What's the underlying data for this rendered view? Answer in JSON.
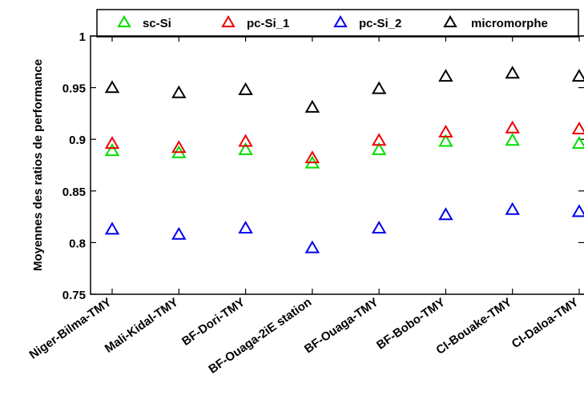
{
  "chart_data": {
    "type": "scatter",
    "title": "",
    "xlabel": "",
    "ylabel": "Moyennes des ratios de performance",
    "categories": [
      "Niger-Bilma-TMY",
      "Mali-Kidal-TMY",
      "BF-Dori-TMY",
      "BF-Ouaga-2iE station",
      "BF-Ouaga-TMY",
      "BF-Bobo-TMY",
      "CI-Bouake-TMY",
      "CI-Daloa-TMY"
    ],
    "ylim": [
      0.75,
      1
    ],
    "yticks": [
      "0.75",
      "0.8",
      "0.85",
      "0.9",
      "0.95",
      "1"
    ],
    "grid": false,
    "legend_position": "top",
    "marker": "triangle",
    "series": [
      {
        "name": "sc-Si",
        "color": "#00dd00",
        "values": [
          0.888,
          0.886,
          0.889,
          0.876,
          0.889,
          0.897,
          0.898,
          0.895
        ]
      },
      {
        "name": "pc-Si_1",
        "color": "#ee0000",
        "values": [
          0.895,
          0.891,
          0.897,
          0.881,
          0.898,
          0.906,
          0.91,
          0.909
        ]
      },
      {
        "name": "pc-Si_2",
        "color": "#0000ee",
        "values": [
          0.812,
          0.807,
          0.813,
          0.794,
          0.813,
          0.826,
          0.831,
          0.829
        ]
      },
      {
        "name": "micromorphe",
        "color": "#000000",
        "values": [
          0.949,
          0.944,
          0.947,
          0.93,
          0.948,
          0.96,
          0.963,
          0.96
        ]
      }
    ]
  }
}
